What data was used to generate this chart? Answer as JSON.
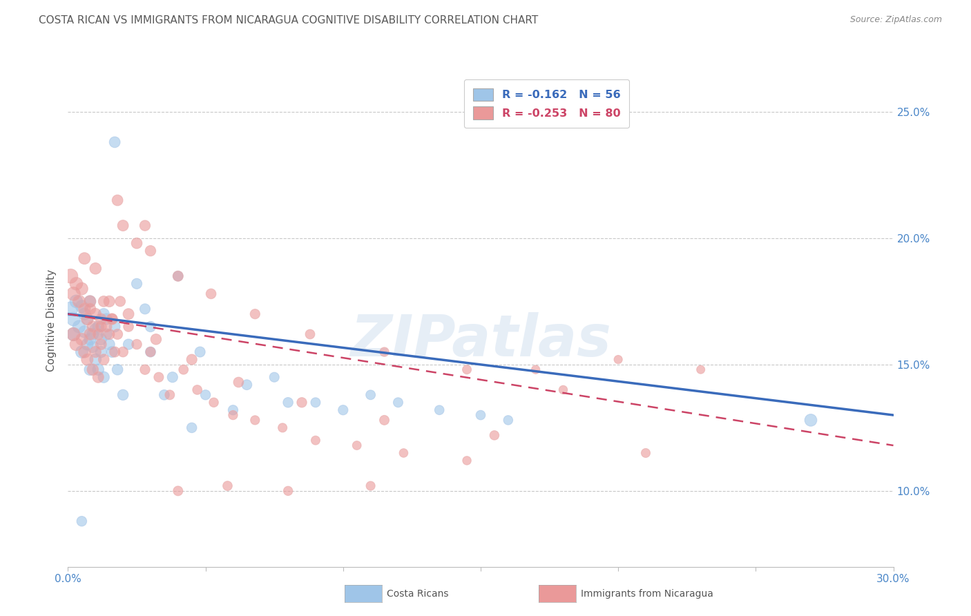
{
  "title": "COSTA RICAN VS IMMIGRANTS FROM NICARAGUA COGNITIVE DISABILITY CORRELATION CHART",
  "source": "Source: ZipAtlas.com",
  "ylabel": "Cognitive Disability",
  "xmin": 0.0,
  "xmax": 0.3,
  "ymin": 0.07,
  "ymax": 0.265,
  "yticks": [
    0.1,
    0.15,
    0.2,
    0.25
  ],
  "ytick_labels": [
    "10.0%",
    "15.0%",
    "20.0%",
    "25.0%"
  ],
  "xticks": [
    0.0,
    0.05,
    0.1,
    0.15,
    0.2,
    0.25,
    0.3
  ],
  "xtick_labels": [
    "0.0%",
    "",
    "",
    "",
    "",
    "",
    "30.0%"
  ],
  "blue_color": "#9fc5e8",
  "pink_color": "#ea9999",
  "blue_line_color": "#3a6bbb",
  "pink_line_color": "#cc4466",
  "axis_color": "#4a86c8",
  "title_color": "#595959",
  "costa_rican_label": "Costa Ricans",
  "nicaragua_label": "Immigrants from Nicaragua",
  "blue_scatter_x": [
    0.001,
    0.002,
    0.002,
    0.003,
    0.004,
    0.005,
    0.005,
    0.006,
    0.006,
    0.007,
    0.007,
    0.008,
    0.008,
    0.009,
    0.009,
    0.01,
    0.01,
    0.011,
    0.011,
    0.012,
    0.012,
    0.013,
    0.013,
    0.014,
    0.014,
    0.015,
    0.016,
    0.017,
    0.018,
    0.02,
    0.022,
    0.025,
    0.028,
    0.03,
    0.035,
    0.04,
    0.045,
    0.05,
    0.06,
    0.075,
    0.09,
    0.11,
    0.135,
    0.16,
    0.27,
    0.017,
    0.03,
    0.038,
    0.048,
    0.065,
    0.08,
    0.1,
    0.12,
    0.15,
    0.008,
    0.005
  ],
  "blue_scatter_y": [
    0.172,
    0.168,
    0.162,
    0.175,
    0.165,
    0.173,
    0.155,
    0.17,
    0.163,
    0.168,
    0.158,
    0.175,
    0.16,
    0.162,
    0.157,
    0.164,
    0.152,
    0.165,
    0.148,
    0.16,
    0.155,
    0.17,
    0.145,
    0.162,
    0.168,
    0.158,
    0.155,
    0.165,
    0.148,
    0.138,
    0.158,
    0.182,
    0.172,
    0.155,
    0.138,
    0.185,
    0.125,
    0.138,
    0.132,
    0.145,
    0.135,
    0.138,
    0.132,
    0.128,
    0.128,
    0.238,
    0.165,
    0.145,
    0.155,
    0.142,
    0.135,
    0.132,
    0.135,
    0.13,
    0.148,
    0.088
  ],
  "blue_scatter_size": [
    220,
    200,
    190,
    180,
    170,
    165,
    160,
    155,
    155,
    150,
    150,
    148,
    148,
    145,
    145,
    142,
    142,
    140,
    140,
    138,
    138,
    136,
    136,
    134,
    134,
    132,
    130,
    128,
    126,
    124,
    120,
    118,
    116,
    114,
    112,
    110,
    108,
    106,
    104,
    102,
    100,
    98,
    96,
    94,
    160,
    128,
    120,
    118,
    116,
    112,
    108,
    104,
    100,
    96,
    142,
    108
  ],
  "pink_scatter_x": [
    0.001,
    0.002,
    0.002,
    0.003,
    0.003,
    0.004,
    0.005,
    0.005,
    0.006,
    0.006,
    0.007,
    0.007,
    0.008,
    0.008,
    0.009,
    0.009,
    0.01,
    0.01,
    0.011,
    0.011,
    0.012,
    0.012,
    0.013,
    0.013,
    0.014,
    0.015,
    0.016,
    0.017,
    0.018,
    0.019,
    0.02,
    0.022,
    0.025,
    0.028,
    0.03,
    0.033,
    0.037,
    0.042,
    0.047,
    0.053,
    0.06,
    0.068,
    0.078,
    0.09,
    0.105,
    0.122,
    0.145,
    0.17,
    0.2,
    0.23,
    0.008,
    0.012,
    0.016,
    0.02,
    0.025,
    0.03,
    0.04,
    0.052,
    0.068,
    0.088,
    0.115,
    0.145,
    0.18,
    0.006,
    0.01,
    0.015,
    0.022,
    0.032,
    0.045,
    0.062,
    0.085,
    0.115,
    0.155,
    0.21,
    0.018,
    0.028,
    0.04,
    0.058,
    0.08,
    0.11
  ],
  "pink_scatter_y": [
    0.185,
    0.178,
    0.162,
    0.182,
    0.158,
    0.175,
    0.18,
    0.16,
    0.172,
    0.155,
    0.168,
    0.152,
    0.175,
    0.162,
    0.165,
    0.148,
    0.17,
    0.155,
    0.162,
    0.145,
    0.168,
    0.158,
    0.175,
    0.152,
    0.165,
    0.162,
    0.168,
    0.155,
    0.162,
    0.175,
    0.155,
    0.165,
    0.158,
    0.148,
    0.155,
    0.145,
    0.138,
    0.148,
    0.14,
    0.135,
    0.13,
    0.128,
    0.125,
    0.12,
    0.118,
    0.115,
    0.112,
    0.148,
    0.152,
    0.148,
    0.172,
    0.165,
    0.168,
    0.205,
    0.198,
    0.195,
    0.185,
    0.178,
    0.17,
    0.162,
    0.155,
    0.148,
    0.14,
    0.192,
    0.188,
    0.175,
    0.17,
    0.16,
    0.152,
    0.143,
    0.135,
    0.128,
    0.122,
    0.115,
    0.215,
    0.205,
    0.1,
    0.102,
    0.1,
    0.102
  ],
  "pink_scatter_size": [
    220,
    200,
    190,
    180,
    175,
    170,
    165,
    162,
    158,
    155,
    152,
    150,
    148,
    146,
    144,
    142,
    140,
    138,
    136,
    134,
    132,
    130,
    128,
    126,
    124,
    122,
    120,
    118,
    116,
    114,
    112,
    110,
    108,
    106,
    104,
    102,
    100,
    98,
    96,
    94,
    92,
    90,
    88,
    86,
    84,
    82,
    80,
    78,
    76,
    74,
    146,
    140,
    136,
    130,
    126,
    122,
    116,
    110,
    104,
    98,
    92,
    86,
    80,
    148,
    142,
    136,
    130,
    124,
    118,
    112,
    106,
    100,
    94,
    88,
    128,
    120,
    100,
    96,
    92,
    88
  ],
  "blue_line_x": [
    0.0,
    0.3
  ],
  "blue_line_y": [
    0.17,
    0.13
  ],
  "pink_line_x": [
    0.0,
    0.3
  ],
  "pink_line_y": [
    0.17,
    0.118
  ]
}
